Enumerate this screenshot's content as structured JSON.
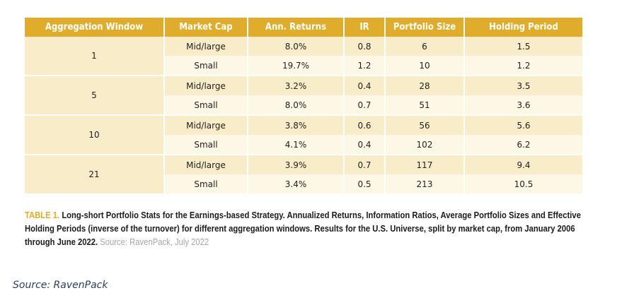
{
  "table": {
    "headers": [
      "Aggregation Window",
      "Market Cap",
      "Ann. Returns",
      "IR",
      "Portfolio Size",
      "Holding Period"
    ],
    "groups": [
      {
        "window": "1",
        "rows": [
          {
            "cap": "Mid/large",
            "ret": "8.0%",
            "ir": "0.8",
            "size": "6",
            "hold": "1.5"
          },
          {
            "cap": "Small",
            "ret": "19.7%",
            "ir": "1.2",
            "size": "10",
            "hold": "1.2"
          }
        ]
      },
      {
        "window": "5",
        "rows": [
          {
            "cap": "Mid/large",
            "ret": "3.2%",
            "ir": "0.4",
            "size": "28",
            "hold": "3.5"
          },
          {
            "cap": "Small",
            "ret": "8.0%",
            "ir": "0.7",
            "size": "51",
            "hold": "3.6"
          }
        ]
      },
      {
        "window": "10",
        "rows": [
          {
            "cap": "Mid/large",
            "ret": "3.8%",
            "ir": "0.6",
            "size": "56",
            "hold": "5.6"
          },
          {
            "cap": "Small",
            "ret": "4.1%",
            "ir": "0.4",
            "size": "102",
            "hold": "6.2"
          }
        ]
      },
      {
        "window": "21",
        "rows": [
          {
            "cap": "Mid/large",
            "ret": "3.9%",
            "ir": "0.7",
            "size": "117",
            "hold": "9.4"
          },
          {
            "cap": "Small",
            "ret": "3.4%",
            "ir": "0.5",
            "size": "213",
            "hold": "10.5"
          }
        ]
      }
    ]
  },
  "caption": {
    "label": "TABLE 1.",
    "text": "Long-short Portfolio Stats for the Earnings-based Strategy. Annualized Returns, Information Ratios, Average Portfolio Sizes and Effective Holding Periods (inverse of the turnover) for different aggregation windows. Results for the U.S. Universe, split by market cap, from January 2006 through June 2022.",
    "source": "Source: RavenPack, July 2022"
  },
  "footer_source": "Source: RavenPack",
  "colors": {
    "header": "#e0ac2c",
    "row_dark": "#f8ecc9",
    "row_light": "#fdf7e6"
  }
}
